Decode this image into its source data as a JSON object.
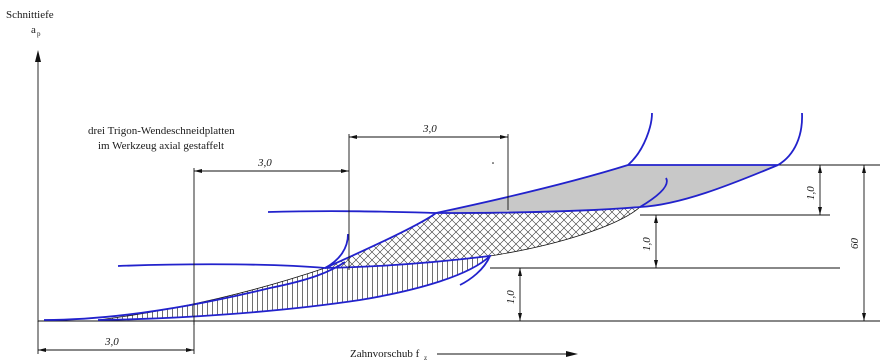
{
  "axis": {
    "y_title": "Schnittiefe",
    "y_symbol": "a",
    "y_subscript": "p",
    "x_title": "Zahnvorschub f",
    "x_subscript": "z"
  },
  "note": {
    "line1": "drei Trigon-Wendeschneidplatten",
    "line2": "im Werkzeug axial gestaffelt"
  },
  "dimensions": {
    "offset_top": "3,0",
    "offset_middle": "3,0",
    "offset_bottom": "3,0",
    "depth_upper": "1,0",
    "depth_middle": "1,0",
    "depth_lower": "1,0",
    "depth_total": "60"
  },
  "colors": {
    "cutting_edge": "#2222cc",
    "chip_fill": "#c8c8c8",
    "line": "#111111"
  }
}
